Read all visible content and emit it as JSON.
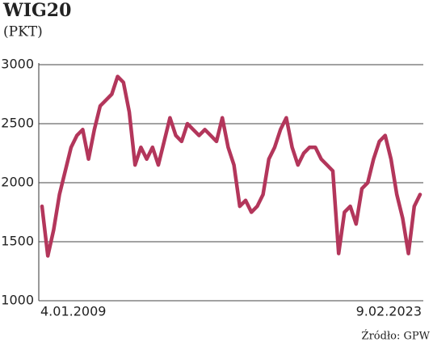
{
  "chart_data": {
    "type": "line",
    "title": "WIG20",
    "subtitle": "(PKT)",
    "source": "Źródło: GPW",
    "categories": [
      "4.01.2009",
      null,
      null,
      null,
      null,
      null,
      null,
      null,
      null,
      null,
      null,
      null,
      null,
      null,
      null,
      null,
      null,
      null,
      null,
      null,
      null,
      null,
      null,
      null,
      null,
      null,
      null,
      null,
      null,
      null,
      null,
      null,
      null,
      null,
      null,
      null,
      null,
      null,
      null,
      null,
      null,
      null,
      null,
      null,
      null,
      null,
      null,
      null,
      null,
      null,
      null,
      null,
      null,
      null,
      null,
      null,
      null,
      null,
      null,
      null,
      null,
      null,
      null,
      null,
      null,
      "9.02.2023"
    ],
    "series": [
      {
        "name": "WIG20",
        "color": "#b3365b",
        "values": [
          1800,
          1380,
          1600,
          1900,
          2100,
          2300,
          2400,
          2450,
          2200,
          2450,
          2650,
          2700,
          2750,
          2900,
          2850,
          2600,
          2150,
          2300,
          2200,
          2300,
          2150,
          2350,
          2550,
          2400,
          2350,
          2500,
          2450,
          2400,
          2450,
          2400,
          2350,
          2550,
          2300,
          2150,
          1800,
          1850,
          1750,
          1800,
          1900,
          2200,
          2300,
          2450,
          2550,
          2300,
          2150,
          2250,
          2300,
          2300,
          2200,
          2150,
          2100,
          1400,
          1750,
          1800,
          1650,
          1950,
          2000,
          2200,
          2350,
          2400,
          2200,
          1900,
          1700,
          1400,
          1800,
          1900
        ]
      }
    ],
    "ylim": [
      1000,
      3000
    ],
    "yticks": [
      1000,
      1500,
      2000,
      2500,
      3000
    ],
    "grid": true
  }
}
